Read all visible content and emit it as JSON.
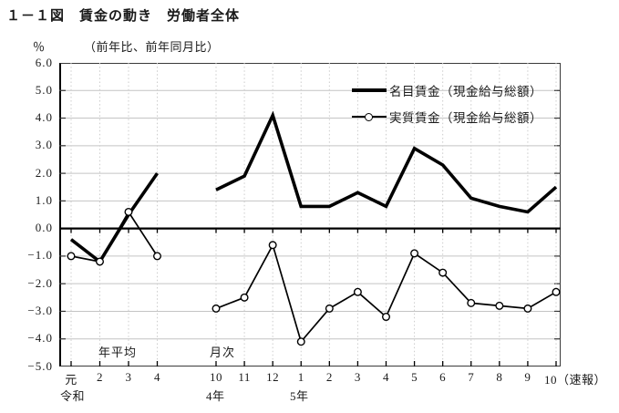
{
  "title": "１－１図　賃金の動き　労働者全体",
  "y_axis": {
    "unit": "％",
    "note": "（前年比、前年同月比）",
    "tick_labels": [
      "6.0",
      "5.0",
      "4.0",
      "3.0",
      "2.0",
      "1.0",
      "0.0",
      "-1.0",
      "-2.0",
      "-3.0",
      "-4.0",
      "-5.0"
    ]
  },
  "legend": [
    {
      "label": "名目賃金（現金給与総額）",
      "swatch": "thick-solid-line"
    },
    {
      "label": "実質賃金（現金給与総額）",
      "swatch": "open-circle-line"
    }
  ],
  "sections": {
    "annual": "年平均",
    "monthly": "月次"
  },
  "x_axis": {
    "annual_labels": [
      "元",
      "2",
      "3",
      "4"
    ],
    "era_annual": "令和",
    "monthly_labels": [
      "10",
      "11",
      "12",
      "1",
      "2",
      "3",
      "4",
      "5",
      "6",
      "7",
      "8",
      "9",
      "10（速報）"
    ],
    "era_monthly_first": "4年",
    "era_monthly_second": "5年"
  },
  "chart_data": {
    "type": "line",
    "title": "賃金の動き　労働者全体",
    "ylabel": "％（前年比、前年同月比）",
    "ylim": [
      -5.0,
      6.0
    ],
    "y_tick_step": 1.0,
    "grid": true,
    "legend_position": "top-right",
    "annual_categories": [
      "令和元年",
      "令和2年",
      "令和3年",
      "令和4年"
    ],
    "monthly_categories": [
      "4年10月",
      "11月",
      "12月",
      "5年1月",
      "2月",
      "3月",
      "4月",
      "5月",
      "6月",
      "7月",
      "8月",
      "9月",
      "10月（速報）"
    ],
    "series": [
      {
        "name": "名目賃金（現金給与総額）",
        "style": "thick-solid",
        "annual_values": [
          -0.4,
          -1.2,
          0.5,
          2.0
        ],
        "monthly_values": [
          1.4,
          1.9,
          4.1,
          0.8,
          0.8,
          1.3,
          0.8,
          2.9,
          2.3,
          1.1,
          0.8,
          0.6,
          1.5
        ]
      },
      {
        "name": "実質賃金（現金給与総額）",
        "style": "thin-open-circle",
        "annual_values": [
          -1.0,
          -1.2,
          0.6,
          -1.0
        ],
        "monthly_values": [
          -2.9,
          -2.5,
          -0.6,
          -4.1,
          -2.9,
          -2.3,
          -3.2,
          -0.9,
          -1.6,
          -2.7,
          -2.8,
          -2.9,
          -2.3
        ]
      }
    ]
  },
  "colors": {
    "line": "#000000",
    "grid": "#c4c4c4",
    "dotted_grid": "#cccccc",
    "text": "#1a1a1a"
  }
}
